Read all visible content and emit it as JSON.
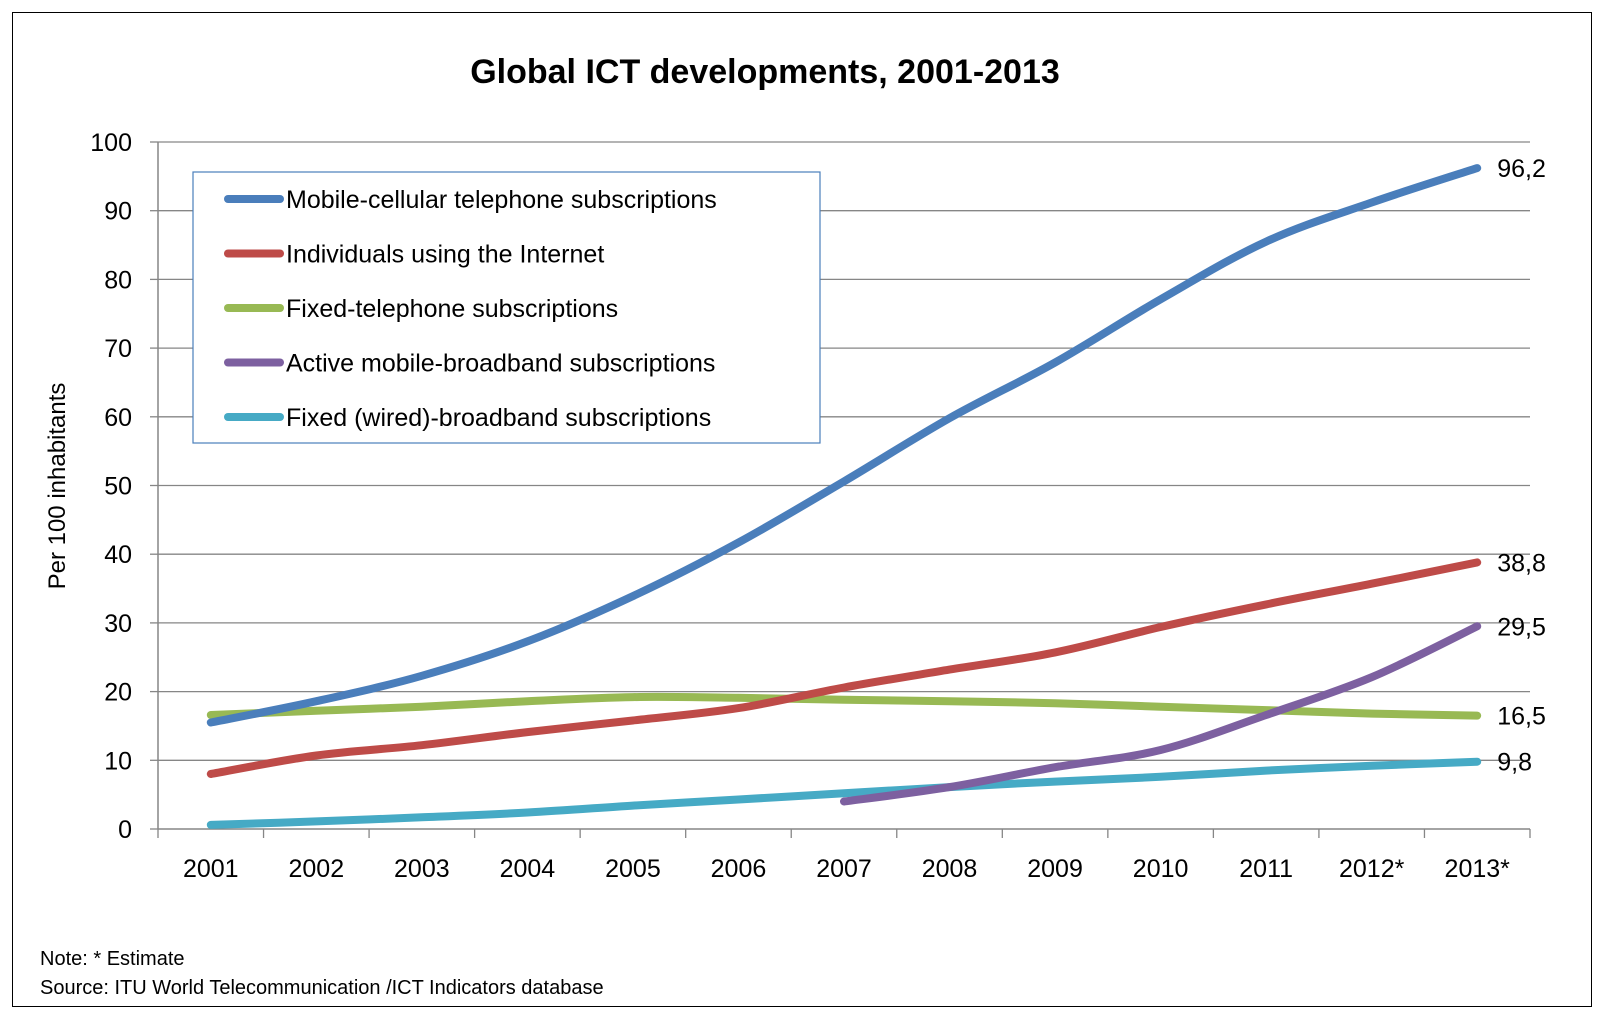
{
  "chart_data": {
    "type": "line",
    "title": "Global ICT developments, 2001-2013",
    "ylabel": "Per 100 inhabitants",
    "xlabel": "",
    "ylim": [
      0,
      100
    ],
    "yticks": [
      0,
      10,
      20,
      30,
      40,
      50,
      60,
      70,
      80,
      90,
      100
    ],
    "categories": [
      "2001",
      "2002",
      "2003",
      "2004",
      "2005",
      "2006",
      "2007",
      "2008",
      "2009",
      "2010",
      "2011",
      "2012*",
      "2013*"
    ],
    "grid": true,
    "legend_position": "top-left",
    "series": [
      {
        "name": "Mobile-cellular telephone subscriptions",
        "color": "#4a7ebb",
        "values": [
          15.5,
          18.6,
          22.3,
          27.3,
          33.9,
          41.7,
          50.6,
          59.8,
          67.9,
          77.1,
          85.5,
          91.2,
          96.2
        ],
        "end_label": "96,2"
      },
      {
        "name": "Individuals using the Internet",
        "color": "#be4b48",
        "values": [
          8.0,
          10.7,
          12.2,
          14.1,
          15.8,
          17.6,
          20.6,
          23.2,
          25.7,
          29.4,
          32.7,
          35.7,
          38.8
        ],
        "end_label": "38,8"
      },
      {
        "name": "Fixed-telephone subscriptions",
        "color": "#98b954",
        "values": [
          16.6,
          17.2,
          17.8,
          18.6,
          19.2,
          19.1,
          18.8,
          18.6,
          18.3,
          17.8,
          17.3,
          16.8,
          16.5
        ],
        "end_label": "16,5"
      },
      {
        "name": "Active mobile-broadband subscriptions",
        "color": "#7d60a0",
        "values": [
          null,
          null,
          null,
          null,
          null,
          null,
          4.0,
          6.1,
          9.0,
          11.5,
          16.6,
          22.1,
          29.5
        ],
        "end_label": "29,5"
      },
      {
        "name": "Fixed (wired)-broadband subscriptions",
        "color": "#46aac5",
        "values": [
          0.6,
          1.1,
          1.7,
          2.4,
          3.4,
          4.3,
          5.2,
          6.1,
          6.9,
          7.6,
          8.5,
          9.2,
          9.8
        ],
        "end_label": "9,8"
      }
    ]
  },
  "footer": {
    "note": "Note: * Estimate",
    "source": "Source:  ITU World Telecommunication /ICT Indicators database"
  }
}
